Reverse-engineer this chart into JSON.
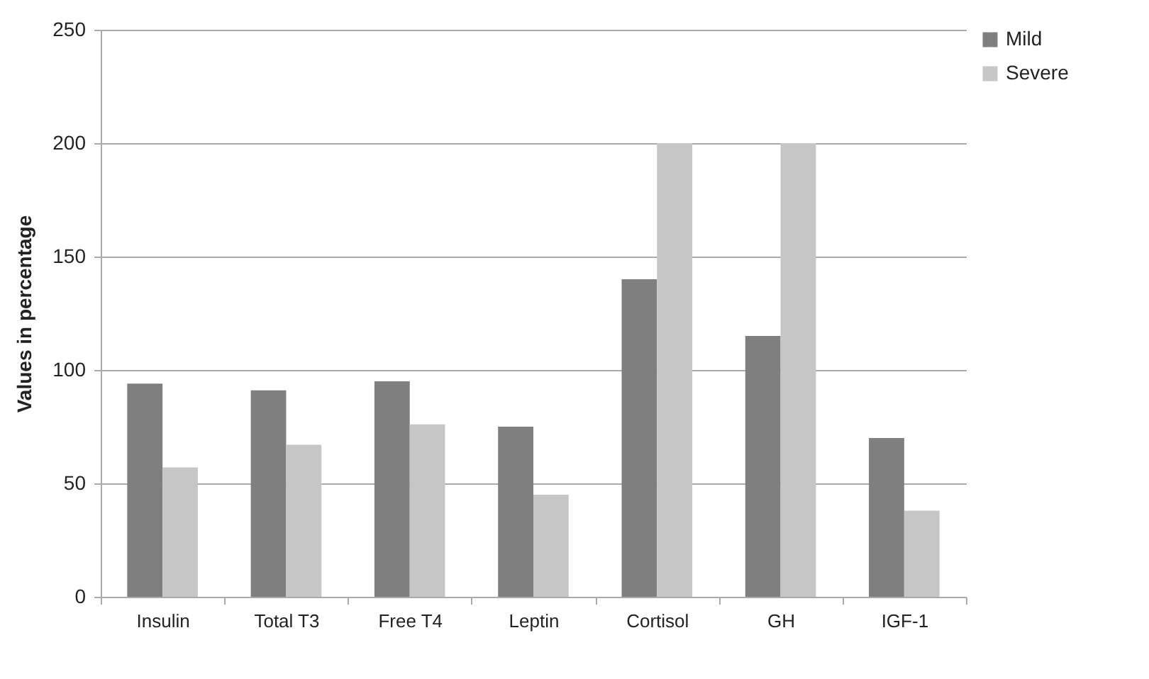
{
  "chart_data": {
    "type": "bar",
    "ylabel": "Values in percentage",
    "categories": [
      "Insulin",
      "Total T3",
      "Free T4",
      "Leptin",
      "Cortisol",
      "GH",
      "IGF-1"
    ],
    "series": [
      {
        "name": "Mild",
        "color": "#7f7f7f",
        "values": [
          94,
          91,
          95,
          75,
          140,
          115,
          70
        ]
      },
      {
        "name": "Severe",
        "color": "#c5c6c5",
        "values": [
          57,
          67,
          76,
          45,
          200,
          200,
          38
        ]
      }
    ],
    "ylim": [
      0,
      250
    ],
    "yticks": [
      0,
      50,
      100,
      150,
      200,
      250
    ],
    "grid": "y",
    "legend": "right"
  }
}
